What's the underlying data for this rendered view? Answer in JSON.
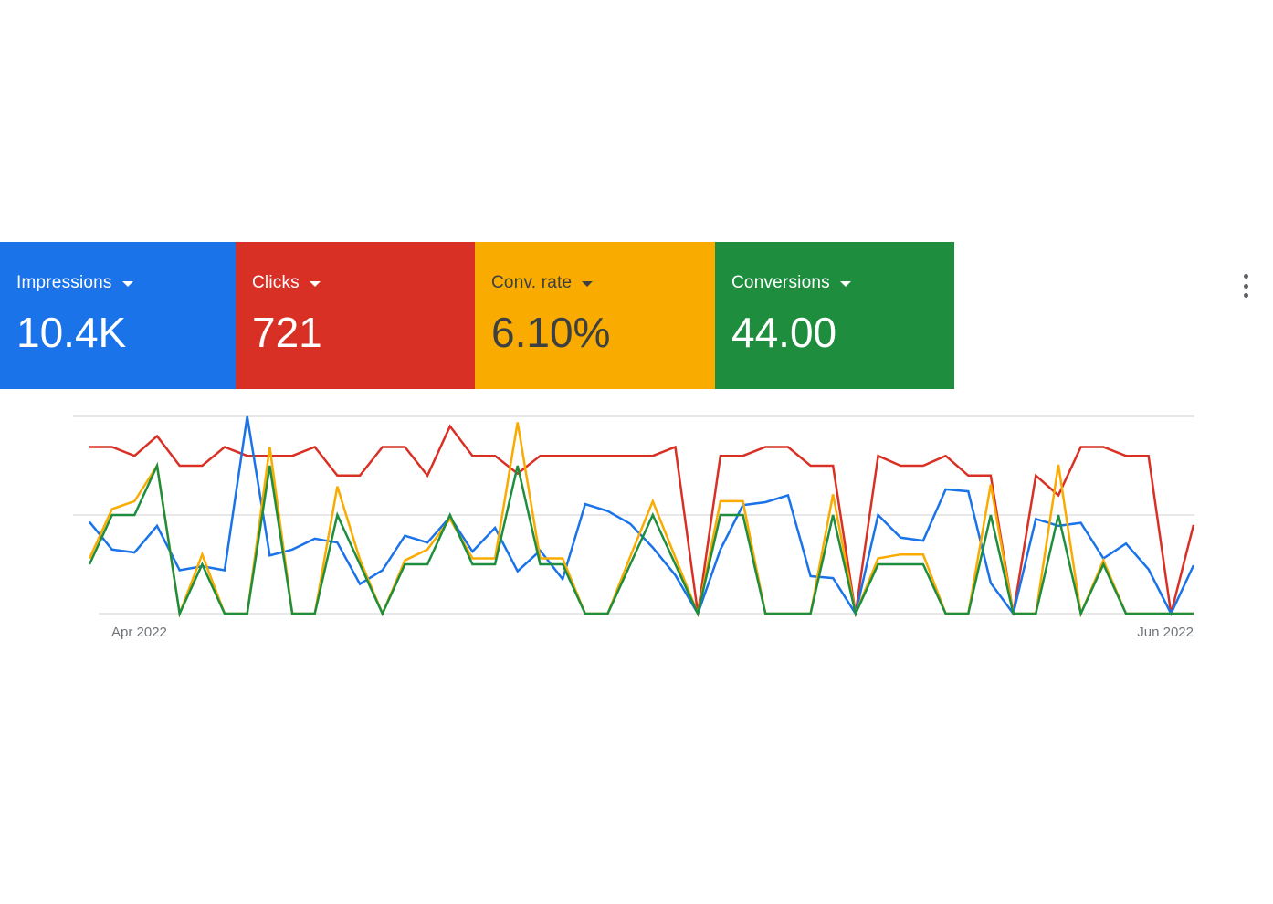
{
  "scorecards": [
    {
      "label": "Impressions",
      "value": "10.4K",
      "color": "#1a73e8",
      "text_color": "#ffffff"
    },
    {
      "label": "Clicks",
      "value": "721",
      "color": "#d93025",
      "text_color": "#ffffff"
    },
    {
      "label": "Conv. rate",
      "value": "6.10%",
      "color": "#f9ab00",
      "text_color": "#3c4043"
    },
    {
      "label": "Conversions",
      "value": "44.00",
      "color": "#1e8e3e",
      "text_color": "#ffffff"
    }
  ],
  "menu_icon": "more-vert-icon",
  "chart_data": {
    "type": "line",
    "x_tick_labels": [
      "Apr 2022",
      "Jun 2022"
    ],
    "ylim": [
      0,
      2
    ],
    "y_scale_note": "relative, unlabeled",
    "grid": true,
    "legend": "none",
    "series": [
      {
        "metric": "Clicks",
        "color": "#d93025",
        "values": [
          1.69,
          1.69,
          1.6,
          1.8,
          1.5,
          1.5,
          1.69,
          1.6,
          1.6,
          1.6,
          1.69,
          1.4,
          1.4,
          1.69,
          1.69,
          1.4,
          1.9,
          1.6,
          1.6,
          1.42,
          1.6,
          1.6,
          1.6,
          1.6,
          1.6,
          1.6,
          1.69,
          0,
          1.6,
          1.6,
          1.69,
          1.69,
          1.5,
          1.5,
          0,
          1.6,
          1.5,
          1.5,
          1.6,
          1.4,
          1.4,
          0,
          1.4,
          1.2,
          1.69,
          1.69,
          1.6,
          1.6,
          0,
          0.9
        ]
      },
      {
        "metric": "Impressions",
        "color": "#1a73e8",
        "values": [
          0.93,
          0.65,
          0.62,
          0.89,
          0.44,
          0.48,
          0.44,
          2.0,
          0.59,
          0.65,
          0.76,
          0.72,
          0.3,
          0.44,
          0.79,
          0.72,
          0.98,
          0.63,
          0.87,
          0.43,
          0.64,
          0.35,
          1.11,
          1.04,
          0.91,
          0.67,
          0.39,
          0,
          0.65,
          1.1,
          1.13,
          1.2,
          0.38,
          0.36,
          0,
          1.0,
          0.77,
          0.74,
          1.26,
          1.24,
          0.31,
          0,
          0.96,
          0.89,
          0.92,
          0.56,
          0.71,
          0.45,
          0,
          0.49
        ]
      },
      {
        "metric": "Conv. rate",
        "color": "#f9ab00",
        "values": [
          0.56,
          1.06,
          1.14,
          1.5,
          0,
          0.6,
          0,
          0,
          1.69,
          0,
          0,
          1.29,
          0.55,
          0,
          0.54,
          0.65,
          0.96,
          0.56,
          0.56,
          1.94,
          0.56,
          0.56,
          0,
          0,
          0.58,
          1.14,
          0.57,
          0,
          1.14,
          1.14,
          0,
          0,
          0,
          1.21,
          0,
          0.56,
          0.6,
          0.6,
          0,
          0,
          1.31,
          0,
          0,
          1.51,
          0,
          0.54,
          0,
          0,
          0,
          0
        ]
      },
      {
        "metric": "Conversions",
        "color": "#1e8e3e",
        "values": [
          0.5,
          1.0,
          1.0,
          1.5,
          0,
          0.5,
          0,
          0,
          1.5,
          0,
          0,
          1.0,
          0.5,
          0,
          0.5,
          0.5,
          1.0,
          0.5,
          0.5,
          1.5,
          0.5,
          0.5,
          0,
          0,
          0.5,
          1.0,
          0.5,
          0,
          1.0,
          1.0,
          0,
          0,
          0,
          1.0,
          0,
          0.5,
          0.5,
          0.5,
          0,
          0,
          1.0,
          0,
          0,
          1.0,
          0,
          0.5,
          0,
          0,
          0,
          0
        ]
      }
    ]
  }
}
